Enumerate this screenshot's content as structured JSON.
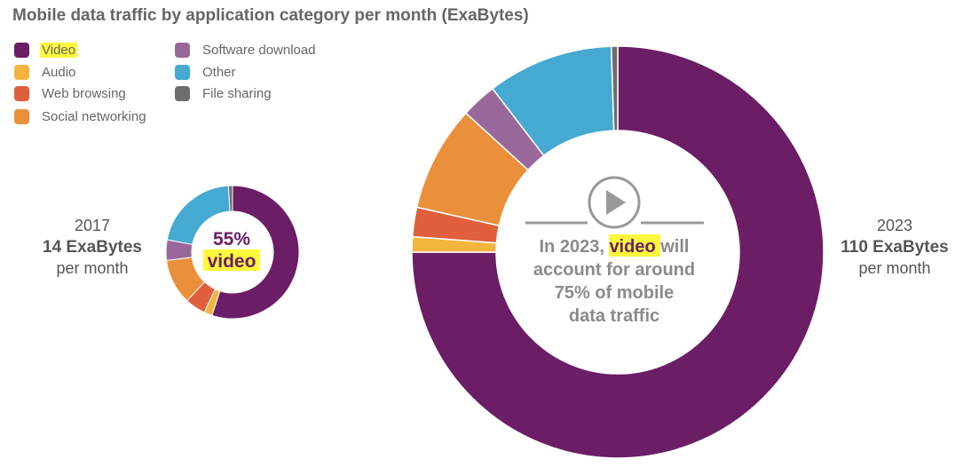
{
  "title": "Mobile data traffic by application category per month (ExaBytes)",
  "legend": [
    {
      "label": "Video",
      "color": "#6b1d66",
      "icon": "square-swatch",
      "highlight": true
    },
    {
      "label": "Audio",
      "color": "#f3b53d",
      "icon": "square-swatch"
    },
    {
      "label": "Web browsing",
      "color": "#e15f3c",
      "icon": "square-swatch"
    },
    {
      "label": "Social networking",
      "color": "#ea903b",
      "icon": "square-swatch"
    },
    {
      "label": "Software download",
      "color": "#99689a",
      "icon": "square-swatch"
    },
    {
      "label": "Other",
      "color": "#45a9d2",
      "icon": "square-swatch"
    },
    {
      "label": "File sharing",
      "color": "#6e6e6e",
      "icon": "square-swatch"
    }
  ],
  "left": {
    "year": "2017",
    "amount": "14 ExaBytes",
    "per": "per month"
  },
  "right": {
    "year": "2023",
    "amount": "110 ExaBytes",
    "per": "per month"
  },
  "small_center": {
    "pct": "55%",
    "word": "video"
  },
  "big_center": {
    "line1_prefix": "In 2023, ",
    "line1_highlight": "video",
    "line1_suffix": " will",
    "line2": "account for around",
    "line3": "75% of mobile",
    "line4": "data traffic",
    "icon": "play-icon"
  },
  "highlight_color": "#fdf83b",
  "chart_data": [
    {
      "type": "pie",
      "year": "2017",
      "total": "14 ExaBytes per month",
      "categories": [
        "Video",
        "Audio",
        "Web browsing",
        "Social networking",
        "Software download",
        "Other",
        "File sharing"
      ],
      "values": [
        55,
        2,
        5,
        11,
        5,
        21,
        1
      ],
      "unit": "%",
      "annotation": "55% video"
    },
    {
      "type": "pie",
      "year": "2023",
      "total": "110 ExaBytes per month",
      "categories": [
        "Video",
        "Audio",
        "Web browsing",
        "Social networking",
        "Software download",
        "Other",
        "File sharing"
      ],
      "values": [
        75,
        1.2,
        2.3,
        8.3,
        2.8,
        9.9,
        0.5
      ],
      "unit": "%",
      "annotation": "In 2023, video will account for around 75% of mobile data traffic"
    }
  ]
}
